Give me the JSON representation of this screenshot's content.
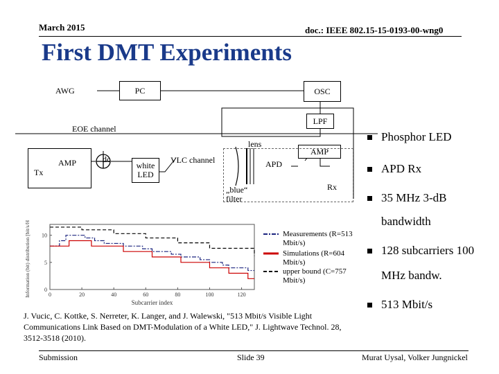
{
  "header": {
    "date": "March 2015",
    "doc": "doc.: IEEE 802.15-15-0193-00-wng0"
  },
  "title": "First DMT Experiments",
  "diagram": {
    "awg": "AWG",
    "pc": "PC",
    "osc": "OSC",
    "lpf": "LPF",
    "eoe_channel": "EOE channel",
    "lens": "lens",
    "amp_rx": "AMP",
    "tx": "Tx",
    "amp_tx": "AMP",
    "dc": "dc",
    "white_led": "white LED",
    "vlc_channel": "VLC channel",
    "apd": "APD",
    "rx": "Rx",
    "blue_filter": "„blue“ filter"
  },
  "bullets": [
    {
      "text": "Phosphor LED",
      "cont": ""
    },
    {
      "text": "APD Rx",
      "cont": ""
    },
    {
      "text": "35 MHz 3-dB",
      "cont": "bandwidth"
    },
    {
      "text": "128 subcarriers 100",
      "cont": "MHz bandw."
    },
    {
      "text": "513 Mbit/s",
      "cont": ""
    }
  ],
  "chart_data": {
    "type": "line",
    "xlabel": "Subcarrier index",
    "ylabel": "Information (bit) distribution [bit/s/Hz]",
    "xlim": [
      0,
      128
    ],
    "ylim": [
      0,
      12
    ],
    "xticks": [
      0,
      20,
      40,
      60,
      80,
      100,
      120
    ],
    "yticks": [
      0,
      5,
      10
    ],
    "series": [
      {
        "name": "Measurements (R=513 Mbit/s)",
        "color": "#1a237e",
        "style": "dashdot",
        "x": [
          0,
          6,
          8,
          10,
          12,
          18,
          22,
          28,
          34,
          40,
          46,
          52,
          58,
          64,
          70,
          76,
          82,
          88,
          94,
          100,
          104,
          108,
          112,
          118,
          124,
          128
        ],
        "y": [
          8,
          9,
          9,
          10,
          10,
          10,
          9.5,
          9,
          8.5,
          8.5,
          8,
          8,
          7.5,
          7,
          7,
          6.5,
          6,
          6,
          5.5,
          5,
          5,
          4.5,
          4,
          4,
          3.5,
          3.5
        ]
      },
      {
        "name": "Simulations (R=604 Mbit/s)",
        "color": "#cc0000",
        "style": "solid",
        "x": [
          0,
          8,
          12,
          22,
          26,
          40,
          46,
          58,
          64,
          74,
          82,
          92,
          100,
          106,
          112,
          120,
          124,
          128
        ],
        "y": [
          8,
          8,
          9,
          9,
          8,
          8,
          7,
          7,
          6,
          6,
          5,
          5,
          4,
          4,
          3,
          3,
          2,
          2
        ]
      },
      {
        "name": "upper bound (C=757 Mbit/s)",
        "color": "#000000",
        "style": "dashed",
        "x": [
          0,
          20,
          40,
          60,
          80,
          100,
          128
        ],
        "y": [
          11.5,
          11,
          10.3,
          9.5,
          8.6,
          7.6,
          6.2
        ]
      }
    ],
    "legend": [
      "Measurements (R=513 Mbit/s)",
      "Simulations (R=604 Mbit/s)",
      "upper bound (C=757 Mbit/s)"
    ]
  },
  "citation": "J. Vucic, C. Kottke, S. Nerreter, K. Langer, and J. Walewski, \"513 Mbit/s Visible Light Communications Link Based on DMT-Modulation of a White LED,\" J. Lightwave Technol. 28, 3512-3518 (2010).",
  "footer": {
    "left": "Submission",
    "center": "Slide 39",
    "right": "Murat Uysal, Volker Jungnickel"
  }
}
